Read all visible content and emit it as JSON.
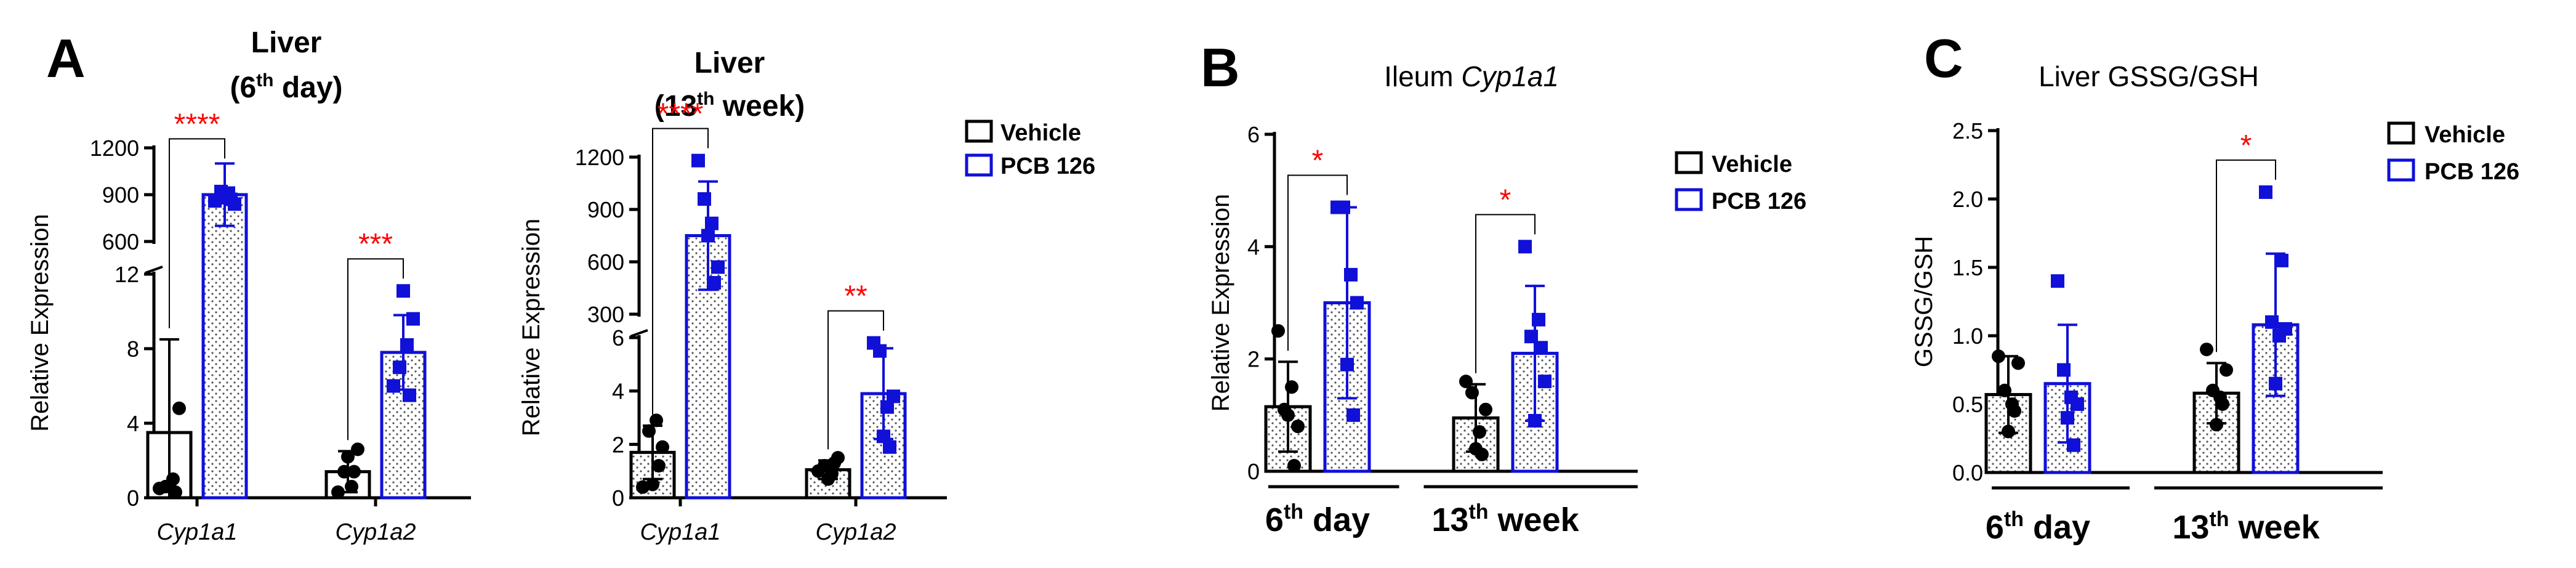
{
  "colors": {
    "vehicle": "#000000",
    "pcb": "#1010d8",
    "stars": "#ff0000"
  },
  "panels": [
    {
      "letter": "A"
    },
    {
      "letter": ""
    },
    {
      "letter": "B"
    },
    {
      "letter": "C"
    }
  ],
  "legend": {
    "vehicle": "Vehicle",
    "pcb": "PCB 126"
  },
  "chart_data": [
    {
      "type": "bar",
      "title": "Liver (6th day)",
      "title_parts": {
        "line1": "Liver",
        "pre": "(6",
        "sup": "th",
        "post": " day)"
      },
      "ylabel": "Relative Expression",
      "categories": [
        "Cyp1a1",
        "Cyp1a2"
      ],
      "y_axis_break": {
        "lower": [
          0,
          12
        ],
        "upper": [
          600,
          1200
        ]
      },
      "yticks_lower": [
        0,
        4,
        8,
        12
      ],
      "yticks_upper": [
        600,
        900,
        1200
      ],
      "series": [
        {
          "name": "Vehicle",
          "values": [
            3.5,
            1.4
          ],
          "sd": [
            5.0,
            1.1
          ],
          "points": [
            [
              0.5,
              0.6,
              1.0,
              4.8,
              0.6,
              0.3
            ],
            [
              0.3,
              1.4,
              0.6,
              2.6,
              2.2,
              1.4
            ]
          ]
        },
        {
          "name": "PCB 126",
          "values": [
            900,
            7.8
          ],
          "sd": [
            200,
            2.0
          ],
          "points": [
            [
              860,
              920,
              910,
              840,
              880,
              870
            ],
            [
              6.0,
              7.0,
              8.2,
              9.6,
              11.1,
              5.5
            ]
          ]
        }
      ],
      "significance": [
        "****",
        "***"
      ]
    },
    {
      "type": "bar",
      "title": "Liver (13th week)",
      "title_parts": {
        "line1": "Liver",
        "pre": "(13",
        "sup": "th",
        "post": " week)"
      },
      "ylabel": "Relative Expression",
      "categories": [
        "Cyp1a1",
        "Cyp1a2"
      ],
      "y_axis_break": {
        "lower": [
          0,
          6
        ],
        "upper": [
          300,
          1200
        ]
      },
      "yticks_lower": [
        0,
        2,
        4,
        6
      ],
      "yticks_upper": [
        300,
        600,
        900,
        1200
      ],
      "series": [
        {
          "name": "Vehicle",
          "values": [
            1.7,
            1.05
          ],
          "sd": [
            1.0,
            0.35
          ],
          "points": [
            [
              0.4,
              2.5,
              2.9,
              1.9,
              0.5,
              1.2
            ],
            [
              1.0,
              1.2,
              0.9,
              1.5,
              0.7,
              1.3
            ]
          ]
        },
        {
          "name": "PCB 126",
          "values": [
            750,
            3.9
          ],
          "sd": [
            310,
            1.7
          ],
          "points": [
            [
              1180,
              960,
              820,
              570,
              750,
              480
            ],
            [
              5.8,
              5.5,
              3.4,
              3.8,
              2.3,
              1.9
            ]
          ]
        }
      ],
      "significance": [
        "****",
        "**"
      ]
    },
    {
      "type": "bar",
      "title": "Ileum Cyp1a1",
      "title_parts": {
        "pre": "Ileum ",
        "italic": "Cyp1a1"
      },
      "ylabel": "Relative Expression",
      "categories": [
        "6th day",
        "13th week"
      ],
      "category_parts": [
        {
          "main": "6",
          "sup": "th",
          "rest": " day"
        },
        {
          "main": "13",
          "sup": "th",
          "rest": " week"
        }
      ],
      "ylim": [
        0,
        6
      ],
      "yticks": [
        0,
        2,
        4,
        6
      ],
      "series": [
        {
          "name": "Vehicle",
          "values": [
            1.15,
            0.95
          ],
          "sd": [
            0.8,
            0.6
          ],
          "points": [
            [
              2.5,
              1.1,
              1.5,
              0.8,
              1.0,
              0.1
            ],
            [
              1.6,
              1.4,
              0.7,
              1.1,
              0.4,
              0.3
            ]
          ]
        },
        {
          "name": "PCB 126",
          "values": [
            3.0,
            2.1
          ],
          "sd": [
            1.7,
            1.2
          ],
          "points": [
            [
              4.7,
              4.7,
              3.5,
              3.0,
              1.9,
              1.0
            ],
            [
              4.0,
              2.4,
              2.7,
              1.6,
              0.9,
              2.2
            ]
          ]
        }
      ],
      "significance": [
        "*",
        "*"
      ]
    },
    {
      "type": "bar",
      "title": "Liver GSSG/GSH",
      "ylabel": "GSSG/GSH",
      "categories": [
        "6th day",
        "13th week"
      ],
      "category_parts": [
        {
          "main": "6",
          "sup": "th",
          "rest": " day"
        },
        {
          "main": "13",
          "sup": "th",
          "rest": " week"
        }
      ],
      "ylim": [
        0,
        2.5
      ],
      "yticks": [
        0.0,
        0.5,
        1.0,
        1.5,
        2.0,
        2.5
      ],
      "ytick_labels": [
        "0.0",
        "0.5",
        "1.0",
        "1.5",
        "2.0",
        "2.5"
      ],
      "series": [
        {
          "name": "Vehicle",
          "values": [
            0.57,
            0.58
          ],
          "sd": [
            0.28,
            0.22
          ],
          "points": [
            [
              0.85,
              0.6,
              0.5,
              0.8,
              0.3,
              0.45
            ],
            [
              0.9,
              0.6,
              0.55,
              0.75,
              0.35,
              0.5
            ]
          ]
        },
        {
          "name": "PCB 126",
          "values": [
            0.65,
            1.08
          ],
          "sd": [
            0.43,
            0.52
          ],
          "points": [
            [
              1.4,
              0.75,
              0.55,
              0.5,
              0.4,
              0.2
            ],
            [
              2.05,
              1.1,
              1.0,
              1.05,
              0.65,
              1.55
            ]
          ]
        }
      ],
      "significance": [
        null,
        "*"
      ]
    }
  ]
}
